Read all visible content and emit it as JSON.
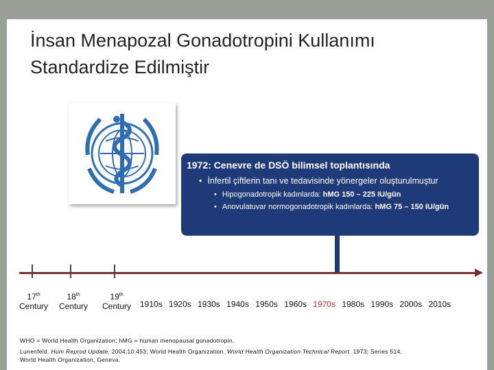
{
  "title": "İnsan Menapozal Gonadotropini Kullanımı Standardize Edilmiştir",
  "logo_icon": "who-emblem-icon",
  "info_box": {
    "heading": "1972: Cenevre de DSÖ bilimsel toplantısında",
    "bullet": "İnfertil çiftlerin tanı ve tedavisinde yönergeler oluşturulmuştur",
    "sub1_text": "Hipogonadotropik kadınlarda:",
    "sub1_bold": "hMG 150 – 225 IU/gün",
    "sub2_text": "Anovulatuvar normogonadotropik kadınlarda:",
    "sub2_bold": "hMG 75 – 150 IU/gün"
  },
  "timeline": {
    "centuries": [
      {
        "num": "17",
        "sup": "th",
        "word": "Century"
      },
      {
        "num": "18",
        "sup": "th",
        "word": "Century"
      },
      {
        "num": "19",
        "sup": "th",
        "word": "Century"
      }
    ],
    "decades": [
      "1910s",
      "1920s",
      "1930s",
      "1940s",
      "1950s",
      "1960s",
      "1970s",
      "1980s",
      "1990s",
      "2000s",
      "2010s"
    ],
    "highlight": "1970s",
    "highlight_color": "#c0272d",
    "axis_color": "#7b2c2f"
  },
  "footnotes": {
    "line1": "WHO = World Health Organization; hMG = human menopausal gonadotropin.",
    "line2_a": "Lunenfeld.",
    "line2_b": "Hum Reprod Update.",
    "line2_c": "2004;10:453; World Health Organization.",
    "line2_d": "World Health Organization Technical Report.",
    "line2_e": "1973; Series 514.",
    "line3": "World Health Organization, Geneva."
  }
}
